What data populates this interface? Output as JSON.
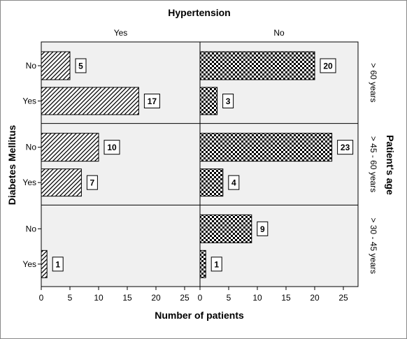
{
  "chart_data": {
    "type": "bar",
    "orientation": "horizontal",
    "title": "Hypertension",
    "xlabel": "Number of patients",
    "ylabel": "Diabetes Mellitus",
    "row_label": "Patient's age",
    "columns": [
      "Yes",
      "No"
    ],
    "rows": [
      "> 60 years",
      "> 45 - 60 years",
      "> 30 - 45 years"
    ],
    "categories": [
      "No",
      "Yes"
    ],
    "xlim": [
      0,
      25
    ],
    "xticks": [
      0,
      5,
      10,
      15,
      20,
      25
    ],
    "grid": false,
    "panels": [
      {
        "row": "> 60 years",
        "column": "Yes",
        "values": [
          5,
          17
        ]
      },
      {
        "row": "> 60 years",
        "column": "No",
        "values": [
          20,
          3
        ]
      },
      {
        "row": "> 45 - 60 years",
        "column": "Yes",
        "values": [
          10,
          7
        ]
      },
      {
        "row": "> 45 - 60 years",
        "column": "No",
        "values": [
          23,
          4
        ]
      },
      {
        "row": "> 30 - 45 years",
        "column": "Yes",
        "values": [
          null,
          1
        ]
      },
      {
        "row": "> 30 - 45 years",
        "column": "No",
        "values": [
          9,
          1
        ]
      }
    ],
    "fills": {
      "Yes": "diagonal-hatch",
      "No": "checkerboard"
    },
    "colors": {
      "panel_bg": "#f0f0f0",
      "frame": "#000000"
    }
  }
}
